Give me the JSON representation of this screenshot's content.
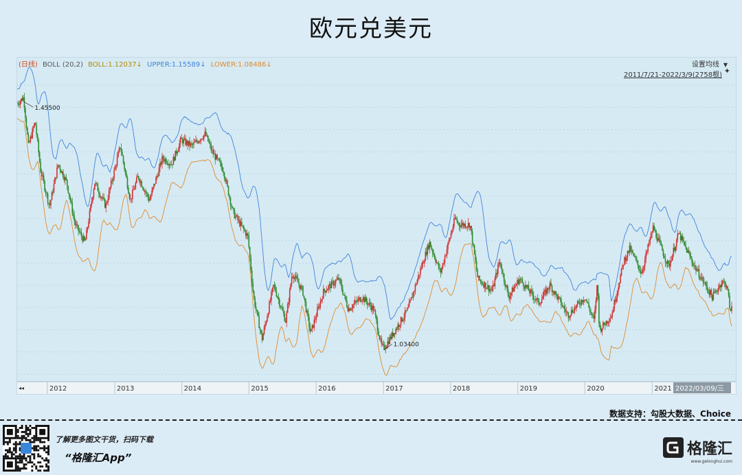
{
  "title": "欧元兑美元",
  "legend": {
    "prefix": "(日线)",
    "indicator": "BOLL (20,2)",
    "boll": "BOLL:1.12037↓",
    "upper": "UPPER:1.15589↓",
    "lower": "LOWER:1.08486↓",
    "colors": {
      "prefix": "#d04a1c",
      "indicator": "#555555",
      "boll": "#b38a00",
      "upper": "#3f83d9",
      "lower": "#e08a2a"
    }
  },
  "controls": {
    "settings_label": "设置均线",
    "dropdown_glyph": "▼",
    "range_label": "2011/7/21-2022/3/9(2758根)",
    "pin_glyph": "📌",
    "scroll_left_glyph": "◂◂"
  },
  "annotations": {
    "max_label": "1.45500",
    "min_label": "1.03400"
  },
  "cursor_date": "2022/03/09/三",
  "source": "数据支持：勾股大数据、Choice",
  "footer": {
    "line1": "了解更多图文干货，扫码下载",
    "line2": "“格隆汇App”",
    "brand": "格隆汇",
    "brand_sub": "www.gelonghui.com"
  },
  "colors": {
    "up": "#d03030",
    "down": "#2e8a2e",
    "upper_band": "#3f83d9",
    "lower_band": "#e08a2a",
    "mid_band": "#b38a00"
  },
  "chart_data": {
    "type": "line",
    "title": "欧元兑美元",
    "x_type": "date",
    "x_start": "2011-07-21",
    "x_end": "2022-03-09",
    "x_ticks": [
      "2012",
      "2013",
      "2014",
      "2015",
      "2016",
      "2017",
      "2018",
      "2019",
      "2020",
      "2021"
    ],
    "ylim": [
      0.98,
      1.5
    ],
    "grid": true,
    "series": [
      {
        "name": "BOLL (20,2)",
        "points": [
          [
            "2011-07-21",
            1.44
          ],
          [
            "2011-08-25",
            1.45
          ],
          [
            "2011-09-20",
            1.37
          ],
          [
            "2011-10-27",
            1.41
          ],
          [
            "2011-11-25",
            1.33
          ],
          [
            "2012-01-13",
            1.27
          ],
          [
            "2012-02-29",
            1.34
          ],
          [
            "2012-04-15",
            1.31
          ],
          [
            "2012-05-31",
            1.24
          ],
          [
            "2012-07-24",
            1.21
          ],
          [
            "2012-09-14",
            1.31
          ],
          [
            "2012-11-13",
            1.27
          ],
          [
            "2013-02-01",
            1.37
          ],
          [
            "2013-03-27",
            1.28
          ],
          [
            "2013-05-08",
            1.32
          ],
          [
            "2013-07-09",
            1.28
          ],
          [
            "2013-09-18",
            1.35
          ],
          [
            "2013-11-07",
            1.34
          ],
          [
            "2013-12-27",
            1.38
          ],
          [
            "2014-02-25",
            1.37
          ],
          [
            "2014-05-08",
            1.39
          ],
          [
            "2014-06-15",
            1.36
          ],
          [
            "2014-08-15",
            1.33
          ],
          [
            "2014-10-06",
            1.26
          ],
          [
            "2014-12-26",
            1.22
          ],
          [
            "2015-01-26",
            1.12
          ],
          [
            "2015-03-13",
            1.05
          ],
          [
            "2015-05-15",
            1.14
          ],
          [
            "2015-07-20",
            1.08
          ],
          [
            "2015-08-24",
            1.16
          ],
          [
            "2015-10-20",
            1.13
          ],
          [
            "2015-12-02",
            1.06
          ],
          [
            "2016-02-11",
            1.13
          ],
          [
            "2016-05-03",
            1.15
          ],
          [
            "2016-06-24",
            1.1
          ],
          [
            "2016-09-06",
            1.12
          ],
          [
            "2016-11-09",
            1.1
          ],
          [
            "2016-12-20",
            1.04
          ],
          [
            "2017-01-03",
            1.035
          ],
          [
            "2017-03-15",
            1.07
          ],
          [
            "2017-05-15",
            1.1
          ],
          [
            "2017-07-26",
            1.17
          ],
          [
            "2017-09-08",
            1.21
          ],
          [
            "2017-11-07",
            1.16
          ],
          [
            "2018-01-25",
            1.25
          ],
          [
            "2018-02-16",
            1.24
          ],
          [
            "2018-04-17",
            1.24
          ],
          [
            "2018-05-29",
            1.15
          ],
          [
            "2018-08-15",
            1.13
          ],
          [
            "2018-09-24",
            1.18
          ],
          [
            "2018-11-12",
            1.12
          ],
          [
            "2019-01-10",
            1.15
          ],
          [
            "2019-04-26",
            1.11
          ],
          [
            "2019-06-25",
            1.14
          ],
          [
            "2019-10-01",
            1.09
          ],
          [
            "2020-01-01",
            1.12
          ],
          [
            "2020-02-20",
            1.08
          ],
          [
            "2020-03-09",
            1.145
          ],
          [
            "2020-03-20",
            1.065
          ],
          [
            "2020-05-25",
            1.09
          ],
          [
            "2020-07-31",
            1.18
          ],
          [
            "2020-09-01",
            1.2
          ],
          [
            "2020-11-04",
            1.16
          ],
          [
            "2021-01-06",
            1.235
          ],
          [
            "2021-03-31",
            1.17
          ],
          [
            "2021-05-25",
            1.225
          ],
          [
            "2021-08-20",
            1.17
          ],
          [
            "2021-11-24",
            1.12
          ],
          [
            "2022-01-14",
            1.145
          ],
          [
            "2022-02-10",
            1.14
          ],
          [
            "2022-03-07",
            1.085
          ],
          [
            "2022-03-09",
            1.105
          ]
        ]
      }
    ]
  }
}
